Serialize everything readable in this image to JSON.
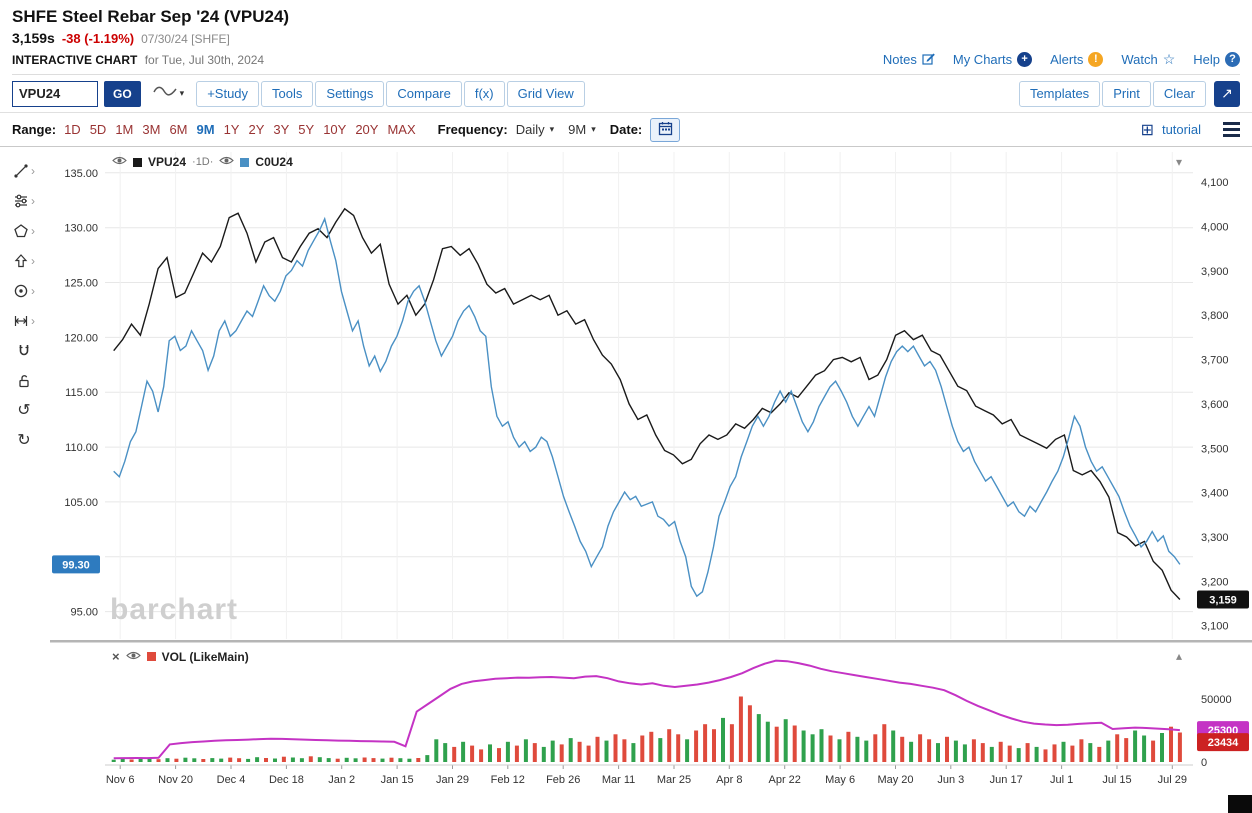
{
  "header": {
    "title": "SHFE Steel Rebar Sep '24 (VPU24)",
    "price": "3,159s",
    "change": "-38 (-1.19%)",
    "date_source": "07/30/24 [SHFE]",
    "chart_label": "INTERACTIVE CHART",
    "chart_date": "for Tue, Jul 30th, 2024",
    "links": {
      "notes": "Notes",
      "my_charts": "My Charts",
      "alerts": "Alerts",
      "watch": "Watch",
      "help": "Help"
    }
  },
  "toolbar": {
    "symbol_value": "VPU24",
    "go_label": "GO",
    "buttons": [
      "+Study",
      "Tools",
      "Settings",
      "Compare",
      "f(x)",
      "Grid View"
    ],
    "right_buttons": [
      "Templates",
      "Print",
      "Clear"
    ]
  },
  "range_bar": {
    "range_label": "Range:",
    "ranges": [
      "1D",
      "5D",
      "1M",
      "3M",
      "6M",
      "9M",
      "1Y",
      "2Y",
      "3Y",
      "5Y",
      "10Y",
      "20Y",
      "MAX"
    ],
    "active_range": "9M",
    "frequency_label": "Frequency:",
    "frequency_value": "Daily",
    "period_value": "9M",
    "date_label": "Date:",
    "tutorial_label": "tutorial"
  },
  "legend_main": {
    "series1": "VPU24",
    "series1_freq": "·1D·",
    "series2": "C0U24"
  },
  "watermark": "barchart",
  "drawing_tools": [
    {
      "name": "trendline-tool",
      "submenu": true
    },
    {
      "name": "indicators-tool",
      "submenu": true
    },
    {
      "name": "shapes-tool",
      "submenu": true
    },
    {
      "name": "arrow-tool",
      "submenu": true
    },
    {
      "name": "annotation-tool",
      "submenu": true
    },
    {
      "name": "measure-tool",
      "submenu": true
    },
    {
      "name": "magnet-tool",
      "submenu": false
    },
    {
      "name": "lock-tool",
      "submenu": false
    },
    {
      "name": "undo-button",
      "submenu": false
    },
    {
      "name": "redo-button",
      "submenu": false
    }
  ],
  "icons": {
    "notes": "pencil-icon",
    "my_charts": "plus-circle-icon",
    "alerts": "exclamation-circle-icon",
    "watch": "star-icon",
    "help": "question-circle-icon",
    "line_style": "wave-icon",
    "expand": "expand-arrow-icon",
    "calendar": "calendar-icon",
    "panels": "grid-icon",
    "menu": "hamburger-icon",
    "eye": "eye-icon",
    "close": "close-icon",
    "collapse_main": "chevron-down-icon",
    "collapse_vol": "chevron-up-icon"
  },
  "colors": {
    "accent_blue": "#1f6db8",
    "navy": "#16418c",
    "range_red": "#993333",
    "series1": "#1a1a1a",
    "series2": "#4a90c4",
    "vol_up": "#2fa14d",
    "vol_down": "#df4a3c",
    "vol_line": "#c433c4",
    "badge_left": "#2e7bbf",
    "badge_right": "#111111",
    "badge_vol": "#cc2222",
    "alert_orange": "#f5a623",
    "change_red": "#cc0000"
  },
  "chart_data": {
    "type": "line",
    "title": "VPU24 daily line with C0U24 comparison and VOL (LikeMain) subpanel",
    "x_tick_labels": [
      "Nov 6",
      "Nov 20",
      "Dec 4",
      "Dec 18",
      "Jan 2",
      "Jan 15",
      "Jan 29",
      "Feb 12",
      "Feb 26",
      "Mar 11",
      "Mar 25",
      "Apr 8",
      "Apr 22",
      "May 6",
      "May 20",
      "Jun 3",
      "Jun 17",
      "Jul 1",
      "Jul 15",
      "Jul 29"
    ],
    "left_axis": {
      "min": 92.5,
      "max": 136.9,
      "ticks": [
        "135.00",
        "130.00",
        "125.00",
        "120.00",
        "115.00",
        "110.00",
        "105.00",
        "95.00"
      ],
      "grid_values": [
        135,
        130,
        125,
        120,
        115,
        110,
        105,
        100,
        95
      ],
      "last_value_badge": "99.30"
    },
    "right_axis": {
      "min": 3070,
      "max": 4168,
      "ticks": [
        "4,100",
        "4,000",
        "3,900",
        "3,800",
        "3,700",
        "3,600",
        "3,500",
        "3,400",
        "3,300",
        "3,200",
        "3,100"
      ],
      "last_value_badge": "3,159"
    },
    "series": [
      {
        "name": "VPU24",
        "axis": "right",
        "color": "#1a1a1a",
        "values": [
          3720,
          3745,
          3780,
          3755,
          3825,
          3905,
          3930,
          3840,
          3850,
          3895,
          3940,
          3920,
          3955,
          4020,
          4030,
          3985,
          3920,
          3965,
          3975,
          3930,
          3920,
          3955,
          3985,
          3995,
          3975,
          4010,
          4040,
          4025,
          3975,
          3940,
          3960,
          3870,
          3825,
          3845,
          3800,
          3825,
          3880,
          3950,
          3955,
          3935,
          3950,
          3915,
          3870,
          3850,
          3860,
          3825,
          3835,
          3845,
          3835,
          3845,
          3800,
          3810,
          3780,
          3790,
          3745,
          3710,
          3690,
          3655,
          3600,
          3565,
          3575,
          3530,
          3495,
          3485,
          3465,
          3475,
          3510,
          3530,
          3520,
          3530,
          3555,
          3545,
          3565,
          3590,
          3580,
          3600,
          3625,
          3615,
          3640,
          3665,
          3675,
          3700,
          3705,
          3695,
          3705,
          3655,
          3665,
          3700,
          3755,
          3765,
          3745,
          3755,
          3720,
          3710,
          3675,
          3640,
          3630,
          3595,
          3585,
          3575,
          3555,
          3565,
          3530,
          3520,
          3510,
          3500,
          3520,
          3530,
          3450,
          3440,
          3450,
          3425,
          3390,
          3310,
          3300,
          3280,
          3290,
          3245,
          3225,
          3180,
          3159
        ]
      },
      {
        "name": "C0U24",
        "axis": "left",
        "color": "#4a90c4",
        "values": [
          107.8,
          107.3,
          108.7,
          110.5,
          111.4,
          113.7,
          116.0,
          115.1,
          113.2,
          115.5,
          119.7,
          120.1,
          118.8,
          119.2,
          120.6,
          119.7,
          118.8,
          117.0,
          118.3,
          120.6,
          121.5,
          120.1,
          120.6,
          121.5,
          122.4,
          121.9,
          123.3,
          124.7,
          123.8,
          123.3,
          124.2,
          125.6,
          126.1,
          127.0,
          126.5,
          127.9,
          128.8,
          129.7,
          130.8,
          128.8,
          127.0,
          124.2,
          122.4,
          120.6,
          121.5,
          119.2,
          117.4,
          118.3,
          116.9,
          117.8,
          119.2,
          120.1,
          121.5,
          123.3,
          124.2,
          124.7,
          123.3,
          121.5,
          119.7,
          118.3,
          119.2,
          120.1,
          121.5,
          122.4,
          122.9,
          121.9,
          120.6,
          120.1,
          115.5,
          112.8,
          111.9,
          112.3,
          110.9,
          110.0,
          110.5,
          109.6,
          110.0,
          110.9,
          110.5,
          109.1,
          107.3,
          105.5,
          104.1,
          102.8,
          101.4,
          100.5,
          99.1,
          100.0,
          100.9,
          102.8,
          104.1,
          105.0,
          105.9,
          105.2,
          105.5,
          104.6,
          104.8,
          105.0,
          103.7,
          103.4,
          102.8,
          103.2,
          101.4,
          100.0,
          97.3,
          96.4,
          96.8,
          98.6,
          100.9,
          103.7,
          105.0,
          106.4,
          107.3,
          109.1,
          110.5,
          111.9,
          112.8,
          111.9,
          112.8,
          114.1,
          115.1,
          114.1,
          115.1,
          113.7,
          112.3,
          111.4,
          112.3,
          113.7,
          114.6,
          115.5,
          116.0,
          115.1,
          114.1,
          112.8,
          111.9,
          112.8,
          113.7,
          112.8,
          114.6,
          116.4,
          117.8,
          118.7,
          119.2,
          118.7,
          119.2,
          118.3,
          117.4,
          117.8,
          117.0,
          115.5,
          113.7,
          111.9,
          110.5,
          109.6,
          110.0,
          108.7,
          107.8,
          106.9,
          107.3,
          106.4,
          105.5,
          104.6,
          105.0,
          104.1,
          103.7,
          104.6,
          104.1,
          105.0,
          105.9,
          106.9,
          107.8,
          109.1,
          110.9,
          112.8,
          111.9,
          110.0,
          108.7,
          107.8,
          108.2,
          107.3,
          106.4,
          105.5,
          104.1,
          102.8,
          101.9,
          100.9,
          101.4,
          102.3,
          101.4,
          101.9,
          100.5,
          100.0,
          99.3
        ]
      }
    ],
    "volume_panel": {
      "label": "VOL (LikeMain)",
      "axis_ticks": [
        "50000",
        "0"
      ],
      "bars": {
        "values": [
          1800,
          2500,
          2000,
          3200,
          2800,
          2200,
          3000,
          2600,
          3400,
          2900,
          2400,
          3100,
          2700,
          3500,
          3000,
          2500,
          3800,
          3200,
          2800,
          4200,
          3600,
          3000,
          4500,
          3800,
          3100,
          2600,
          3300,
          2900,
          3600,
          3100,
          2700,
          3400,
          3000,
          2600,
          3200,
          5500,
          18000,
          15000,
          12000,
          16000,
          13000,
          10000,
          14000,
          11000,
          16000,
          13000,
          18000,
          15000,
          12000,
          17000,
          14000,
          19000,
          16000,
          13000,
          20000,
          17000,
          22000,
          18000,
          15000,
          21000,
          24000,
          19000,
          26000,
          22000,
          18000,
          25000,
          30000,
          26000,
          35000,
          30000,
          52000,
          45000,
          38000,
          32000,
          28000,
          34000,
          29000,
          25000,
          22000,
          26000,
          21000,
          18000,
          24000,
          20000,
          17000,
          22000,
          30000,
          25000,
          20000,
          16000,
          22000,
          18000,
          15000,
          20000,
          17000,
          14000,
          18000,
          15000,
          12000,
          16000,
          13000,
          11000,
          15000,
          12000,
          10000,
          14000,
          16000,
          13000,
          18000,
          15000,
          12000,
          17000,
          22000,
          19000,
          25000,
          21000,
          17000,
          23000,
          28000,
          23434
        ],
        "colors": [
          "ggrggrgrggrggrrggrgrggrg",
          "grggrrgrggrg",
          "ggrgrrgr",
          "grgrggrgrr",
          "rgrrgrrgrrgr",
          "rrgrrrggrgrg",
          "ggrgrggr",
          "rgrgrrgrgg",
          "rrgrrgrgrr",
          "grrgrgrrggrgrr"
        ]
      },
      "line": {
        "name": "volume-average",
        "color": "#c433c4",
        "values": [
          3000,
          3100,
          3200,
          3100,
          3300,
          14000,
          15000,
          15800,
          16300,
          16800,
          17200,
          17500,
          17800,
          18200,
          18500,
          18300,
          18000,
          17800,
          17500,
          17300,
          17000,
          16800,
          16600,
          16500,
          16300,
          16000,
          12500,
          40000,
          46000,
          52000,
          58000,
          62000,
          64000,
          65000,
          66000,
          66500,
          67000,
          66800,
          67200,
          67500,
          67000,
          66500,
          67800,
          68200,
          66500,
          64000,
          62500,
          61500,
          62500,
          60500,
          59500,
          60500,
          61500,
          63000,
          65000,
          67500,
          70500,
          74500,
          78000,
          80500,
          80000,
          78500,
          76500,
          74000,
          72000,
          70500,
          69000,
          67500,
          66000,
          64500,
          63000,
          62000,
          60500,
          59000,
          57000,
          53000,
          48500,
          44500,
          41000,
          37500,
          34500,
          32000,
          30500,
          29800,
          29300,
          29600,
          30200,
          30800,
          31200,
          26200,
          26800,
          27300,
          27000,
          26500,
          26000,
          25300
        ]
      },
      "last_line_badge": "25300",
      "last_volume_badge": "23434"
    }
  }
}
